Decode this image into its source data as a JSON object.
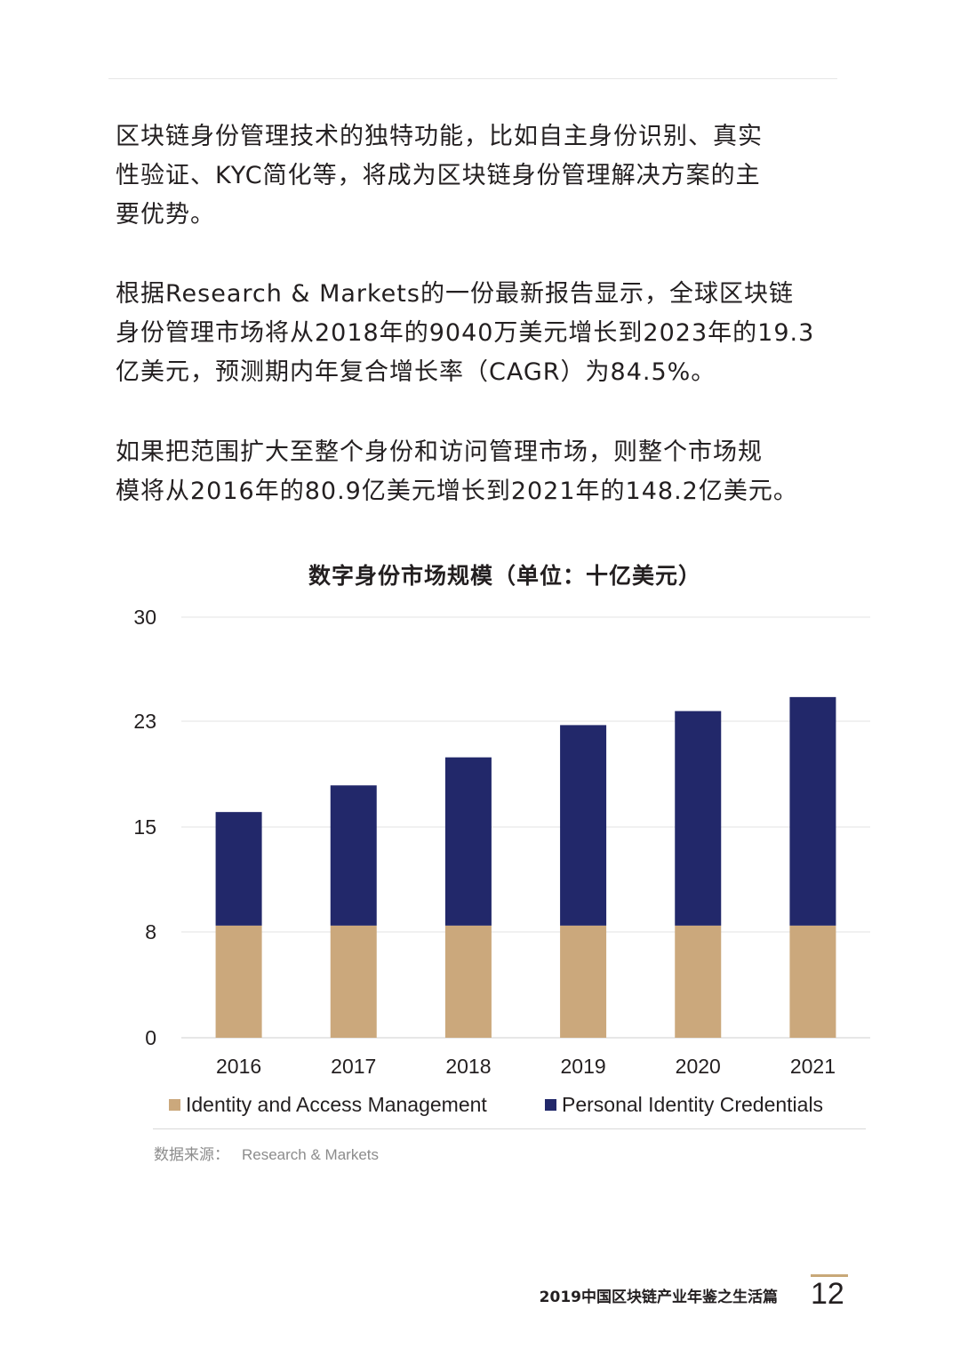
{
  "paragraphs": {
    "p1": [
      "区块链身份管理技术的独特功能，比如自主身份识别、真实",
      "性验证、KYC简化等，将成为区块链身份管理解决方案的主",
      "要优势。"
    ],
    "p2": [
      "根据Research & Markets的一份最新报告显示，全球区块链",
      "身份管理市场将从2018年的9040万美元增长到2023年的19.3",
      "亿美元，预测期内年复合增长率（CAGR）为84.5%。"
    ],
    "p3": [
      "如果把范围扩大至整个身份和访问管理市场，则整个市场规",
      "模将从2016年的80.9亿美元增长到2021年的148.2亿美元。"
    ]
  },
  "chart_data": {
    "type": "bar",
    "stacked": true,
    "title": "数字身份市场规模（单位：十亿美元）",
    "categories": [
      "2016",
      "2017",
      "2018",
      "2019",
      "2020",
      "2021"
    ],
    "y_ticks": [
      "0",
      "8",
      "15",
      "23",
      "30"
    ],
    "ylim": [
      0,
      30
    ],
    "series": [
      {
        "name": "Identity and Access Management",
        "color": "#cba87c",
        "values": [
          8,
          8,
          8,
          8,
          8,
          8
        ]
      },
      {
        "name": "Personal Identity Credentials",
        "color": "#22286a",
        "values": [
          8.1,
          10,
          12,
          14.3,
          15.3,
          16.3
        ]
      }
    ],
    "grid": true,
    "legend": "bottom"
  },
  "source": {
    "label": "数据来源：",
    "value": "Research & Markets"
  },
  "footer": {
    "title": "2019中国区块链产业年鉴之生活篇",
    "page": "12"
  }
}
